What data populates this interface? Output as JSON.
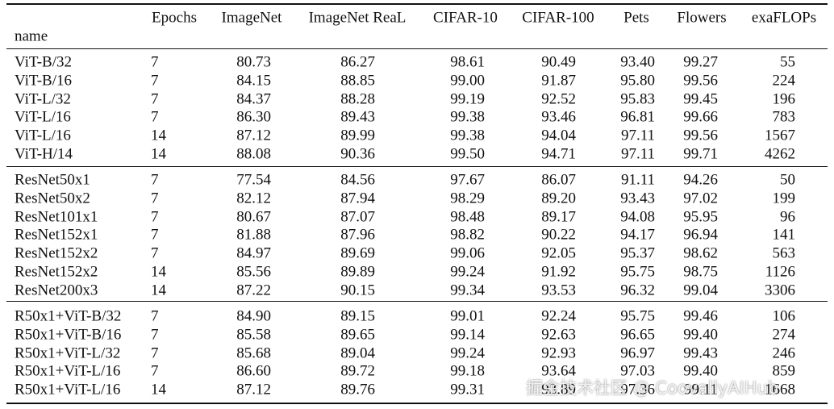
{
  "header": {
    "columns": [
      "Epochs",
      "ImageNet",
      "ImageNet ReaL",
      "CIFAR-10",
      "CIFAR-100",
      "Pets",
      "Flowers",
      "exaFLOPs"
    ],
    "index_label": "name"
  },
  "groups": [
    [
      [
        "ViT-B/32",
        "7",
        "80.73",
        "86.27",
        "98.61",
        "90.49",
        "93.40",
        "99.27",
        "55"
      ],
      [
        "ViT-B/16",
        "7",
        "84.15",
        "88.85",
        "99.00",
        "91.87",
        "95.80",
        "99.56",
        "224"
      ],
      [
        "ViT-L/32",
        "7",
        "84.37",
        "88.28",
        "99.19",
        "92.52",
        "95.83",
        "99.45",
        "196"
      ],
      [
        "ViT-L/16",
        "7",
        "86.30",
        "89.43",
        "99.38",
        "93.46",
        "96.81",
        "99.66",
        "783"
      ],
      [
        "ViT-L/16",
        "14",
        "87.12",
        "89.99",
        "99.38",
        "94.04",
        "97.11",
        "99.56",
        "1567"
      ],
      [
        "ViT-H/14",
        "14",
        "88.08",
        "90.36",
        "99.50",
        "94.71",
        "97.11",
        "99.71",
        "4262"
      ]
    ],
    [
      [
        "ResNet50x1",
        "7",
        "77.54",
        "84.56",
        "97.67",
        "86.07",
        "91.11",
        "94.26",
        "50"
      ],
      [
        "ResNet50x2",
        "7",
        "82.12",
        "87.94",
        "98.29",
        "89.20",
        "93.43",
        "97.02",
        "199"
      ],
      [
        "ResNet101x1",
        "7",
        "80.67",
        "87.07",
        "98.48",
        "89.17",
        "94.08",
        "95.95",
        "96"
      ],
      [
        "ResNet152x1",
        "7",
        "81.88",
        "87.96",
        "98.82",
        "90.22",
        "94.17",
        "96.94",
        "141"
      ],
      [
        "ResNet152x2",
        "7",
        "84.97",
        "89.69",
        "99.06",
        "92.05",
        "95.37",
        "98.62",
        "563"
      ],
      [
        "ResNet152x2",
        "14",
        "85.56",
        "89.89",
        "99.24",
        "91.92",
        "95.75",
        "98.75",
        "1126"
      ],
      [
        "ResNet200x3",
        "14",
        "87.22",
        "90.15",
        "99.34",
        "93.53",
        "96.32",
        "99.04",
        "3306"
      ]
    ],
    [
      [
        "R50x1+ViT-B/32",
        "7",
        "84.90",
        "89.15",
        "99.01",
        "92.24",
        "95.75",
        "99.46",
        "106"
      ],
      [
        "R50x1+ViT-B/16",
        "7",
        "85.58",
        "89.65",
        "99.14",
        "92.63",
        "96.65",
        "99.40",
        "274"
      ],
      [
        "R50x1+ViT-L/32",
        "7",
        "85.68",
        "89.04",
        "99.24",
        "92.93",
        "96.97",
        "99.43",
        "246"
      ],
      [
        "R50x1+ViT-L/16",
        "7",
        "86.60",
        "89.72",
        "99.18",
        "93.64",
        "97.03",
        "99.40",
        "859"
      ],
      [
        "R50x1+ViT-L/16",
        "14",
        "87.12",
        "89.76",
        "99.31",
        "93.89",
        "97.36",
        "99.11",
        "1668"
      ]
    ]
  ],
  "watermark": "掘金技术社区 @ CoovallyAIHub"
}
